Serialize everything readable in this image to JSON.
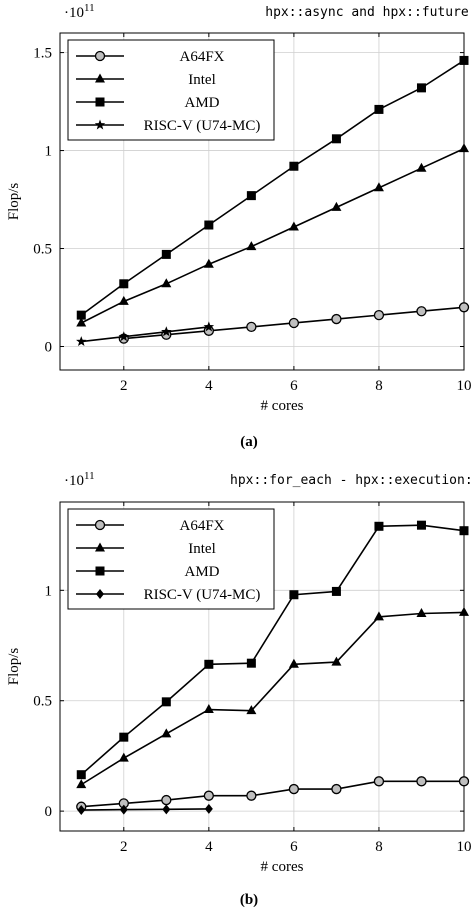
{
  "chart_data": [
    {
      "type": "line",
      "title": "hpx::async and hpx::future",
      "xlabel": "# cores",
      "ylabel": "Flop/s",
      "y_multiplier": "·10",
      "y_exponent": "11",
      "caption": "(a)",
      "xlim": [
        0.5,
        10
      ],
      "ylim": [
        -0.12,
        1.6
      ],
      "xticks": [
        2,
        4,
        6,
        8,
        10
      ],
      "xtick_labels": [
        "2",
        "4",
        "6",
        "8",
        "10"
      ],
      "yticks": [
        0,
        0.5,
        1,
        1.5
      ],
      "ytick_labels": [
        "0",
        "0.5",
        "1",
        "1.5"
      ],
      "grid": true,
      "legend_position": "top-left",
      "series": [
        {
          "name": "A64FX",
          "marker": "circle",
          "x": [
            2,
            3,
            4,
            5,
            6,
            7,
            8,
            9,
            10
          ],
          "values": [
            0.04,
            0.06,
            0.08,
            0.1,
            0.12,
            0.14,
            0.16,
            0.18,
            0.2
          ]
        },
        {
          "name": "Intel",
          "marker": "triangle",
          "x": [
            1,
            2,
            3,
            4,
            5,
            6,
            7,
            8,
            9,
            10
          ],
          "values": [
            0.12,
            0.23,
            0.32,
            0.42,
            0.51,
            0.61,
            0.71,
            0.81,
            0.91,
            1.01
          ]
        },
        {
          "name": "AMD",
          "marker": "square",
          "x": [
            1,
            2,
            3,
            4,
            5,
            6,
            7,
            8,
            9,
            10
          ],
          "values": [
            0.16,
            0.32,
            0.47,
            0.62,
            0.77,
            0.92,
            1.06,
            1.21,
            1.32,
            1.46
          ]
        },
        {
          "name": "RISC-V (U74-MC)",
          "marker": "star",
          "x": [
            1,
            2,
            3,
            4
          ],
          "values": [
            0.025,
            0.05,
            0.075,
            0.1
          ]
        }
      ]
    },
    {
      "type": "line",
      "title": "hpx::for_each - hpx::execution::par",
      "xlabel": "# cores",
      "ylabel": "Flop/s",
      "y_multiplier": "·10",
      "y_exponent": "11",
      "caption": "(b)",
      "xlim": [
        0.5,
        10
      ],
      "ylim": [
        -0.09,
        1.4
      ],
      "xticks": [
        2,
        4,
        6,
        8,
        10
      ],
      "xtick_labels": [
        "2",
        "4",
        "6",
        "8",
        "10"
      ],
      "yticks": [
        0,
        0.5,
        1
      ],
      "ytick_labels": [
        "0",
        "0.5",
        "1"
      ],
      "grid": true,
      "legend_position": "top-left",
      "series": [
        {
          "name": "A64FX",
          "marker": "circle",
          "x": [
            1,
            2,
            3,
            4,
            5,
            6,
            7,
            8,
            9,
            10
          ],
          "values": [
            0.02,
            0.035,
            0.05,
            0.07,
            0.07,
            0.1,
            0.1,
            0.135,
            0.135,
            0.135
          ]
        },
        {
          "name": "Intel",
          "marker": "triangle",
          "x": [
            1,
            2,
            3,
            4,
            5,
            6,
            7,
            8,
            9,
            10
          ],
          "values": [
            0.12,
            0.24,
            0.35,
            0.46,
            0.455,
            0.665,
            0.675,
            0.88,
            0.895,
            0.9
          ]
        },
        {
          "name": "AMD",
          "marker": "square",
          "x": [
            1,
            2,
            3,
            4,
            5,
            6,
            7,
            8,
            9,
            10
          ],
          "values": [
            0.165,
            0.335,
            0.495,
            0.665,
            0.67,
            0.98,
            0.995,
            1.29,
            1.295,
            1.27
          ]
        },
        {
          "name": "RISC-V (U74-MC)",
          "marker": "diamond",
          "x": [
            1,
            2,
            3,
            4
          ],
          "values": [
            0.005,
            0.007,
            0.008,
            0.01
          ]
        }
      ]
    }
  ]
}
